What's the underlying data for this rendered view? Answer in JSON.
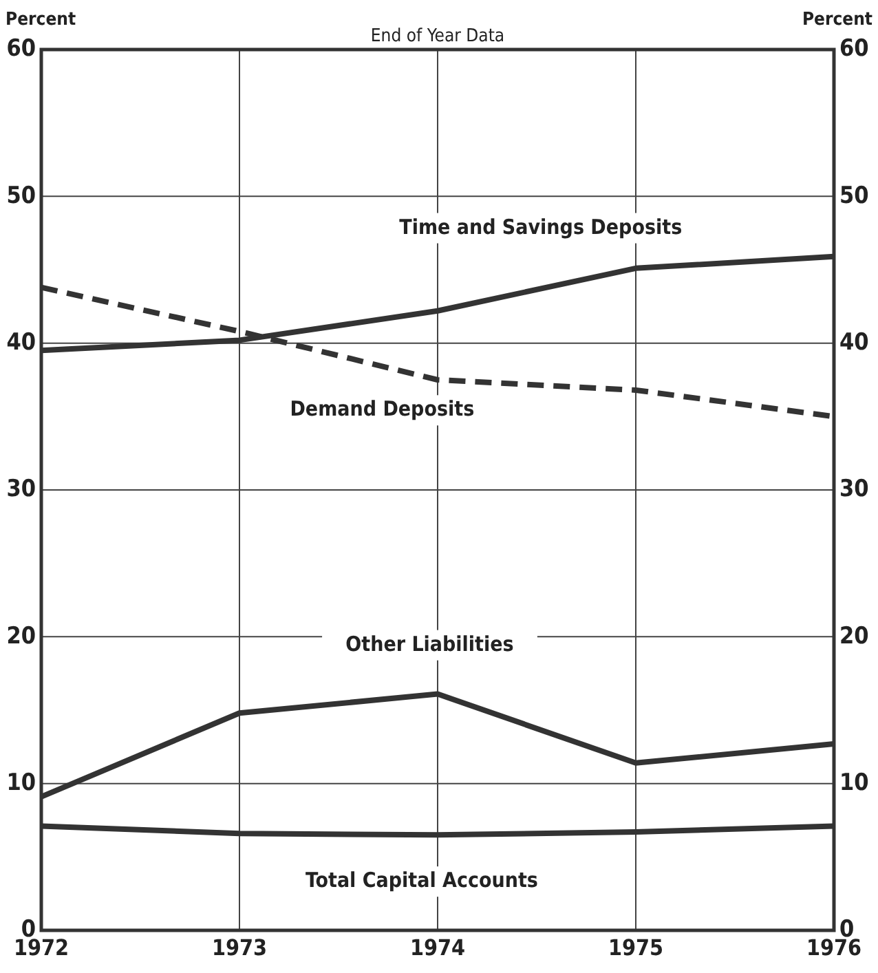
{
  "chart_data": {
    "type": "line",
    "title": "End of Year Data",
    "ylabel": "Percent",
    "y2label": "Percent",
    "x": [
      1972,
      1973,
      1974,
      1975,
      1976
    ],
    "xlim": [
      1972,
      1976
    ],
    "xticks": [
      1972,
      1973,
      1974,
      1975,
      1976
    ],
    "ylim": [
      0,
      60
    ],
    "yticks": [
      0,
      10,
      20,
      30,
      40,
      50,
      60
    ],
    "y2lim": [
      0,
      60
    ],
    "y2ticks": [
      0,
      10,
      20,
      30,
      40,
      50,
      60
    ],
    "grid": true,
    "marker": "none",
    "series": [
      {
        "name": "Time and Savings Deposits",
        "color": "#333333",
        "line_style": "solid",
        "values": [
          39.5,
          40.2,
          42.2,
          45.1,
          45.9
        ]
      },
      {
        "name": "Demand Deposits",
        "color": "#333333",
        "line_style": "dashed",
        "values": [
          43.8,
          40.8,
          37.5,
          36.8,
          35.0
        ]
      },
      {
        "name": "Other Liabilities",
        "color": "#333333",
        "line_style": "solid",
        "values": [
          9.1,
          14.8,
          16.1,
          11.4,
          12.7
        ]
      },
      {
        "name": "Total Capital Accounts",
        "color": "#333333",
        "line_style": "solid",
        "values": [
          7.1,
          6.6,
          6.5,
          6.7,
          7.1
        ]
      }
    ]
  }
}
